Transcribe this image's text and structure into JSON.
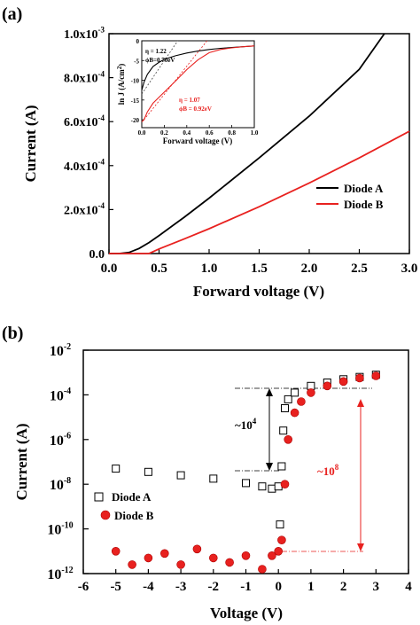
{
  "chart_data": [
    {
      "panel_label": "(a)",
      "type": "line",
      "title": "",
      "xlabel": "Forward voltage (V)",
      "ylabel": "Current (A)",
      "xlim": [
        0.0,
        3.0
      ],
      "ylim": [
        0.0,
        0.001
      ],
      "x_tick_labels": [
        "0.0",
        "0.5",
        "1.0",
        "1.5",
        "2.0",
        "2.5",
        "3.0"
      ],
      "y_tick_labels": [
        {
          "text": "0.0",
          "sup": ""
        },
        {
          "text": "2.0x10",
          "sup": "-4"
        },
        {
          "text": "4.0x10",
          "sup": "-4"
        },
        {
          "text": "6.0x10",
          "sup": "-4"
        },
        {
          "text": "8.0x10",
          "sup": "-4"
        },
        {
          "text": "1.0x10",
          "sup": "-3"
        }
      ],
      "legend_position": "right",
      "grid": false,
      "series": [
        {
          "name": "Diode A",
          "color": "#000000",
          "x": [
            0.0,
            0.1,
            0.2,
            0.3,
            0.4,
            0.5,
            0.75,
            1.0,
            1.5,
            2.0,
            2.5,
            2.75
          ],
          "y": [
            0.0,
            0.0,
            5e-06,
            2.3e-05,
            5e-05,
            8.2e-05,
            0.000165,
            0.000252,
            0.000435,
            0.000625,
            0.000838,
            0.001
          ]
        },
        {
          "name": "Diode B",
          "color": "#e8211f",
          "x": [
            0.0,
            0.3,
            0.4,
            0.5,
            0.75,
            1.0,
            1.5,
            2.0,
            2.5,
            3.0
          ],
          "y": [
            0.0,
            0.0,
            0.0,
            2.1e-05,
            6.6e-05,
            0.000113,
            0.000213,
            0.000321,
            0.000435,
            0.000556
          ]
        }
      ],
      "inset": {
        "type": "line",
        "xlabel": "Forward voltage (V)",
        "ylabel": {
          "text": "ln J (A/cm",
          "sup": "2",
          "tail": ")"
        },
        "xlim": [
          0.0,
          1.0
        ],
        "ylim": [
          -22,
          0
        ],
        "x_tick_labels": [
          "0.0",
          "0.2",
          "0.4",
          "0.6",
          "0.8",
          "1.0"
        ],
        "y_tick_labels": [
          "0",
          "-5",
          "-10",
          "-15",
          "-20"
        ],
        "annotations": [
          {
            "text": "η = 1.22",
            "color": "#000000"
          },
          {
            "text": "ϕB=0.70eV",
            "color": "#000000"
          },
          {
            "text": "η = 1.07",
            "color": "#e8211f"
          },
          {
            "text": "ϕB = 0.92eV",
            "color": "#e8211f"
          }
        ],
        "series": [
          {
            "color": "#000000",
            "x": [
              0.0,
              0.02,
              0.05,
              0.1,
              0.15,
              0.2,
              0.3,
              0.4,
              0.5,
              0.6,
              0.7,
              0.8,
              0.9,
              1.0
            ],
            "y": [
              -12.5,
              -10.5,
              -8.5,
              -6.5,
              -5.5,
              -4.7,
              -3.8,
              -3.1,
              -2.6,
              -2.2,
              -1.9,
              -1.7,
              -1.5,
              -1.3
            ]
          },
          {
            "color": "#e8211f",
            "x": [
              0.0,
              0.02,
              0.05,
              0.1,
              0.2,
              0.3,
              0.4,
              0.5,
              0.6,
              0.7,
              0.8,
              0.9,
              1.0
            ],
            "y": [
              -20.5,
              -20,
              -18,
              -15.8,
              -13,
              -10.2,
              -7.3,
              -4.8,
              -3.0,
              -2.2,
              -1.8,
              -1.5,
              -1.3
            ]
          },
          {
            "color": "#444444",
            "dashed": true,
            "x": [
              0.0,
              0.32
            ],
            "y": [
              -13.5,
              0
            ]
          },
          {
            "color": "#e8211f",
            "dashed": true,
            "x": [
              0.02,
              0.58
            ],
            "y": [
              -20,
              0
            ]
          }
        ]
      }
    },
    {
      "panel_label": "(b)",
      "type": "scatter",
      "title": "",
      "xlabel": "Voltage (V)",
      "ylabel": "Current (A)",
      "yscale": "log",
      "xlim": [
        -6,
        4
      ],
      "ylim_exponent": [
        -12,
        -2
      ],
      "x_tick_labels": [
        "-6",
        "-5",
        "-4",
        "-3",
        "-2",
        "-1",
        "0",
        "1",
        "2",
        "3",
        "4"
      ],
      "y_tick_labels": [
        {
          "text": "10",
          "sup": "-12"
        },
        {
          "text": "10",
          "sup": "-10"
        },
        {
          "text": "10",
          "sup": "-8"
        },
        {
          "text": "10",
          "sup": "-6"
        },
        {
          "text": "10",
          "sup": "-4"
        },
        {
          "text": "10",
          "sup": "-2"
        }
      ],
      "legend_position": "left",
      "grid": false,
      "annotations": [
        {
          "text": "~10",
          "sup": "4",
          "color": "#000000"
        },
        {
          "text": "~10",
          "sup": "8",
          "color": "#e8211f"
        }
      ],
      "series": [
        {
          "name": "Diode A",
          "marker": "open-square",
          "color": "#000000",
          "x": [
            -5.0,
            -4.0,
            -3.0,
            -2.0,
            -1.0,
            -0.5,
            -0.2,
            0.0,
            0.05,
            0.1,
            0.15,
            0.2,
            0.3,
            0.5,
            1.0,
            1.5,
            2.0,
            2.5,
            3.0
          ],
          "log10_y": [
            -7.3,
            -7.45,
            -7.6,
            -7.75,
            -7.95,
            -8.1,
            -8.2,
            -8.1,
            -9.8,
            -7.2,
            -5.6,
            -4.6,
            -4.2,
            -3.9,
            -3.6,
            -3.45,
            -3.3,
            -3.2,
            -3.1
          ]
        },
        {
          "name": "Diode B",
          "marker": "filled-circle",
          "color": "#e8211f",
          "x": [
            -5.0,
            -4.5,
            -4.0,
            -3.5,
            -3.0,
            -2.5,
            -2.0,
            -1.5,
            -1.0,
            -0.5,
            -0.2,
            0.0,
            0.1,
            0.2,
            0.3,
            0.5,
            0.7,
            1.0,
            1.5,
            2.0,
            2.5,
            3.0
          ],
          "log10_y": [
            -11.0,
            -11.6,
            -11.3,
            -11.1,
            -11.6,
            -10.9,
            -11.3,
            -11.5,
            -11.2,
            -11.8,
            -11.2,
            -11.0,
            -10.5,
            -8.0,
            -6.0,
            -4.8,
            -4.3,
            -3.9,
            -3.6,
            -3.4,
            -3.25,
            -3.15
          ]
        }
      ]
    }
  ]
}
